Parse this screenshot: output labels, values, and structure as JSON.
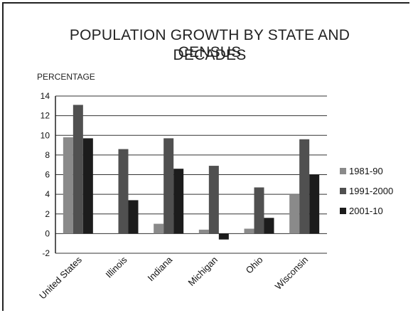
{
  "chart_data": {
    "type": "bar",
    "title_line1": "POPULATION GROWTH BY STATE AND CENSUS",
    "title_line2": "DECADES",
    "ylabel": "PERCENTAGE",
    "xlabel": "",
    "categories": [
      "United States",
      "Illinois",
      "Indiana",
      "Michigan",
      "Ohio",
      "Wisconsin"
    ],
    "series": [
      {
        "name": "1981-90",
        "values": [
          9.8,
          0.0,
          1.0,
          0.4,
          0.5,
          4.0
        ],
        "color": "#8a8a8a"
      },
      {
        "name": "1991-2000",
        "values": [
          13.1,
          8.6,
          9.7,
          6.9,
          4.7,
          9.6
        ],
        "color": "#505050"
      },
      {
        "name": "2001-10",
        "values": [
          9.7,
          3.4,
          6.6,
          -0.6,
          1.6,
          6.0
        ],
        "color": "#1c1c1c"
      }
    ],
    "ylim": [
      -2,
      14
    ],
    "yticks": [
      -2,
      0,
      2,
      4,
      6,
      8,
      10,
      12,
      14
    ],
    "grid": true,
    "legend": "right"
  }
}
